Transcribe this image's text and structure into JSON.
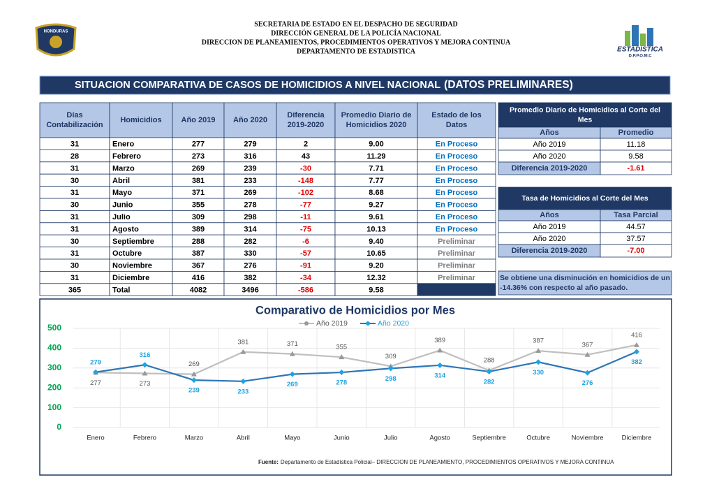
{
  "header": {
    "lines": [
      "SECRETARIA DE ESTADO EN EL DESPACHO DE SEGURIDAD",
      "DIRECCIÓN GENERAL DE LA POLICÍA NACIONAL",
      "DIRECCION DE PLANEAMIENTOS, PROCEDIMIENTOS OPERATIVOS Y MEJORA CONTINUA",
      "DEPARTAMENTO DE ESTADISTICA"
    ],
    "logo_left": "HONDURAS",
    "logo_right": "ESTADISTICA",
    "logo_right_sub": "D.P.P.O.M.C"
  },
  "banner": {
    "title": "SITUACION COMPARATIVA DE CASOS DE HOMICIDIOS A NIVEL NACIONAL",
    "subtitle": "(DATOS PRELIMINARES)"
  },
  "table": {
    "headers": [
      [
        "Días",
        "Contabilización"
      ],
      [
        "Homicidios"
      ],
      [
        "Año 2019"
      ],
      [
        "Año 2020"
      ],
      [
        "Diferencia",
        "2019-2020"
      ],
      [
        "Promedio Diario de",
        "Homicidios 2020"
      ],
      [
        "Estado de los",
        "Datos"
      ]
    ],
    "rows": [
      [
        "31",
        "Enero",
        "277",
        "279",
        "2",
        "9.00",
        "En Proceso"
      ],
      [
        "28",
        "Febrero",
        "273",
        "316",
        "43",
        "11.29",
        "En Proceso"
      ],
      [
        "31",
        "Marzo",
        "269",
        "239",
        "-30",
        "7.71",
        "En Proceso"
      ],
      [
        "30",
        "Abril",
        "381",
        "233",
        "-148",
        "7.77",
        "En Proceso"
      ],
      [
        "31",
        "Mayo",
        "371",
        "269",
        "-102",
        "8.68",
        "En Proceso"
      ],
      [
        "30",
        "Junio",
        "355",
        "278",
        "-77",
        "9.27",
        "En Proceso"
      ],
      [
        "31",
        "Julio",
        "309",
        "298",
        "-11",
        "9.61",
        "En Proceso"
      ],
      [
        "31",
        "Agosto",
        "389",
        "314",
        "-75",
        "10.13",
        "En Proceso"
      ],
      [
        "30",
        "Septiembre",
        "288",
        "282",
        "-6",
        "9.40",
        "Preliminar"
      ],
      [
        "31",
        "Octubre",
        "387",
        "330",
        "-57",
        "10.65",
        "Preliminar"
      ],
      [
        "30",
        "Noviembre",
        "367",
        "276",
        "-91",
        "9.20",
        "Preliminar"
      ],
      [
        "31",
        "Diciembre",
        "416",
        "382",
        "-34",
        "12.32",
        "Preliminar"
      ]
    ],
    "total": [
      "365",
      "Total",
      "4082",
      "3496",
      "-586",
      "9.58"
    ]
  },
  "side_tables": [
    {
      "title": [
        "Promedio Diario de Homicidios al Corte del",
        "Mes"
      ],
      "headers": [
        "Años",
        "Promedio"
      ],
      "rows": [
        [
          "Año 2019",
          "11.18"
        ],
        [
          "Año 2020",
          "9.58"
        ]
      ],
      "diff": [
        "Diferencia 2019-2020",
        "-1.61"
      ]
    },
    {
      "title": [
        "Tasa de Homicidios al Corte del Mes"
      ],
      "headers": [
        "Años",
        "Tasa Parcial"
      ],
      "rows": [
        [
          "Año 2019",
          "44.57"
        ],
        [
          "Año 2020",
          "37.57"
        ]
      ],
      "diff": [
        "Diferencia 2019-2020",
        "-7.00"
      ]
    }
  ],
  "note": [
    "Se obtiene una disminución en homicidios de un",
    "-14.36% con respecto al año pasado."
  ],
  "chart_data": {
    "type": "line",
    "title": "Comparativo de Homicidios por Mes",
    "categories": [
      "Enero",
      "Febrero",
      "Marzo",
      "Abril",
      "Mayo",
      "Junio",
      "Julio",
      "Agosto",
      "Septiembre",
      "Octubre",
      "Noviembre",
      "Diciembre"
    ],
    "series": [
      {
        "name": "Año 2019",
        "color": "#bfbfbf",
        "values": [
          277,
          273,
          269,
          381,
          371,
          355,
          309,
          389,
          288,
          387,
          367,
          416
        ]
      },
      {
        "name": "Año 2020",
        "color": "#2e75b6",
        "values": [
          279,
          316,
          239,
          233,
          269,
          278,
          298,
          314,
          282,
          330,
          276,
          382
        ]
      }
    ],
    "ylim": [
      0,
      500
    ],
    "yticks": [
      0,
      100,
      200,
      300,
      400,
      500
    ],
    "grid": true,
    "legend": "top"
  },
  "source": {
    "label": "Fuente:",
    "text": "Departamento de Estadística Policial– DIRECCION DE PLANEAMIENTO, PROCEDIMIENTOS OPERATIVOS Y MEJORA CONTINUA"
  }
}
